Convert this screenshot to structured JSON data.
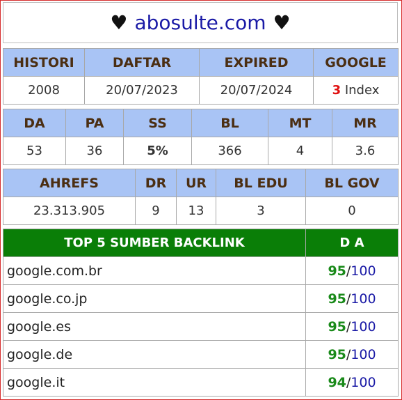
{
  "title": {
    "heart_left": "♥",
    "domain": "abosulte.com",
    "heart_right": "♥"
  },
  "table1": {
    "headers": [
      "HISTORI",
      "DAFTAR",
      "EXPIRED",
      "GOOGLE"
    ],
    "values": {
      "histori": "2008",
      "daftar": "20/07/2023",
      "expired": "20/07/2024",
      "google_count": "3",
      "google_label": "Index"
    }
  },
  "table2": {
    "headers": [
      "DA",
      "PA",
      "SS",
      "BL",
      "MT",
      "MR"
    ],
    "values": [
      "53",
      "36",
      "5%",
      "366",
      "4",
      "3.6"
    ]
  },
  "table3": {
    "headers": [
      "AHREFS",
      "DR",
      "UR",
      "BL EDU",
      "BL GOV"
    ],
    "values": [
      "23.313.905",
      "9",
      "13",
      "3",
      "0"
    ]
  },
  "backlinks": {
    "header_source": "TOP 5 SUMBER BACKLINK",
    "header_da": "D A",
    "slash": "/",
    "rows": [
      {
        "site": "google.com.br",
        "da": "95",
        "max": "100"
      },
      {
        "site": "google.co.jp",
        "da": "95",
        "max": "100"
      },
      {
        "site": "google.es",
        "da": "95",
        "max": "100"
      },
      {
        "site": "google.de",
        "da": "95",
        "max": "100"
      },
      {
        "site": "google.it",
        "da": "94",
        "max": "100"
      }
    ]
  },
  "colors": {
    "header_blue": "#a9c4f5",
    "header_green": "#0a7e07",
    "domain_blue": "#1a1aa6",
    "accent_red": "#e01010",
    "accent_green": "#1a8a1a",
    "frame_red": "#d62c2c"
  }
}
